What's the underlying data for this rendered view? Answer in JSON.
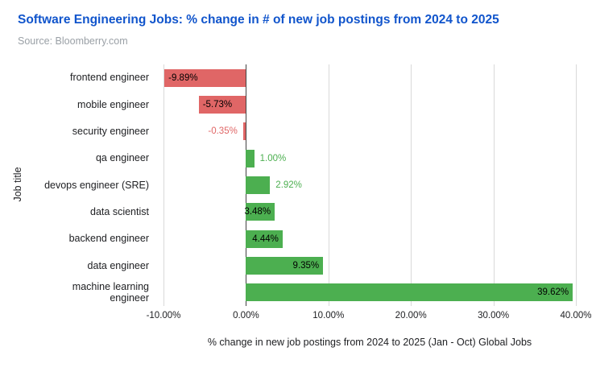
{
  "header": {
    "title": "Software Engineering Jobs: % change in # of new job postings from 2024 to 2025",
    "source": "Source: Bloomberry.com"
  },
  "chart_data": {
    "type": "bar",
    "orientation": "horizontal",
    "title": "Software Engineering Jobs: % change in # of new job postings from 2024 to 2025",
    "xlabel": "% change in new job postings from 2024 to 2025 (Jan - Oct) Global Jobs",
    "ylabel": "Job title",
    "categories": [
      "frontend engineer",
      "mobile engineer",
      "security engineer",
      "qa engineer",
      "devops engineer (SRE)",
      "data scientist",
      "backend engineer",
      "data engineer",
      "machine learning engineer"
    ],
    "values": [
      -9.89,
      -5.73,
      -0.35,
      1.0,
      2.92,
      3.48,
      4.44,
      9.35,
      39.62
    ],
    "value_labels": [
      "-9.89%",
      "-5.73%",
      "-0.35%",
      "1.00%",
      "2.92%",
      "3.48%",
      "4.44%",
      "9.35%",
      "39.62%"
    ],
    "label_placements": [
      "inside",
      "inside",
      "outside",
      "outside",
      "outside",
      "inside",
      "inside",
      "inside",
      "inside"
    ],
    "colors": {
      "negative_bar": "#e06666",
      "positive_bar": "#4caf50",
      "inside_label": "#000000",
      "title": "#1155cc",
      "source": "#9aa0a6",
      "gridline": "#d9d9d9",
      "zero_axis": "#424242"
    },
    "xlim": [
      -10,
      40
    ],
    "xticks": [
      -10,
      0,
      10,
      20,
      30,
      40
    ],
    "xtick_labels": [
      "-10.00%",
      "0.00%",
      "10.00%",
      "20.00%",
      "30.00%",
      "40.00%"
    ],
    "grid": true,
    "legend": "none"
  }
}
